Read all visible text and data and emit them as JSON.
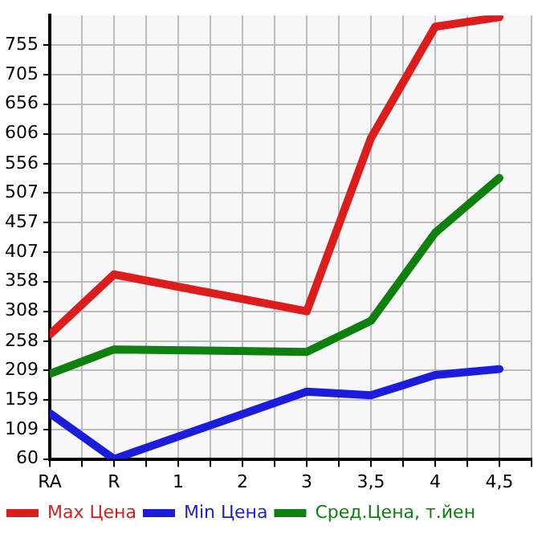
{
  "chart_data": {
    "type": "line",
    "categories": [
      "RA",
      "R",
      "1",
      "2",
      "3",
      "3,5",
      "4",
      "4,5"
    ],
    "series": [
      {
        "name": "Max Цена",
        "color": "#dd1c1c",
        "values": [
          269,
          370,
          null,
          null,
          308,
          599,
          786,
          802
        ]
      },
      {
        "name": "Min Цена",
        "color": "#1c1cdd",
        "values": [
          137,
          60,
          null,
          null,
          173,
          167,
          201,
          211
        ]
      },
      {
        "name": "Сред.Цена, т.йен",
        "color": "#0e800e",
        "values": [
          203,
          244,
          null,
          null,
          240,
          292,
          440,
          532
        ]
      }
    ],
    "ylim": [
      60,
      805
    ],
    "yticks": [
      60,
      109,
      159,
      209,
      258,
      308,
      358,
      407,
      457,
      507,
      556,
      606,
      656,
      705,
      755
    ],
    "grid": true,
    "legend": "bottom",
    "marker": "none",
    "line_style": "solid"
  }
}
